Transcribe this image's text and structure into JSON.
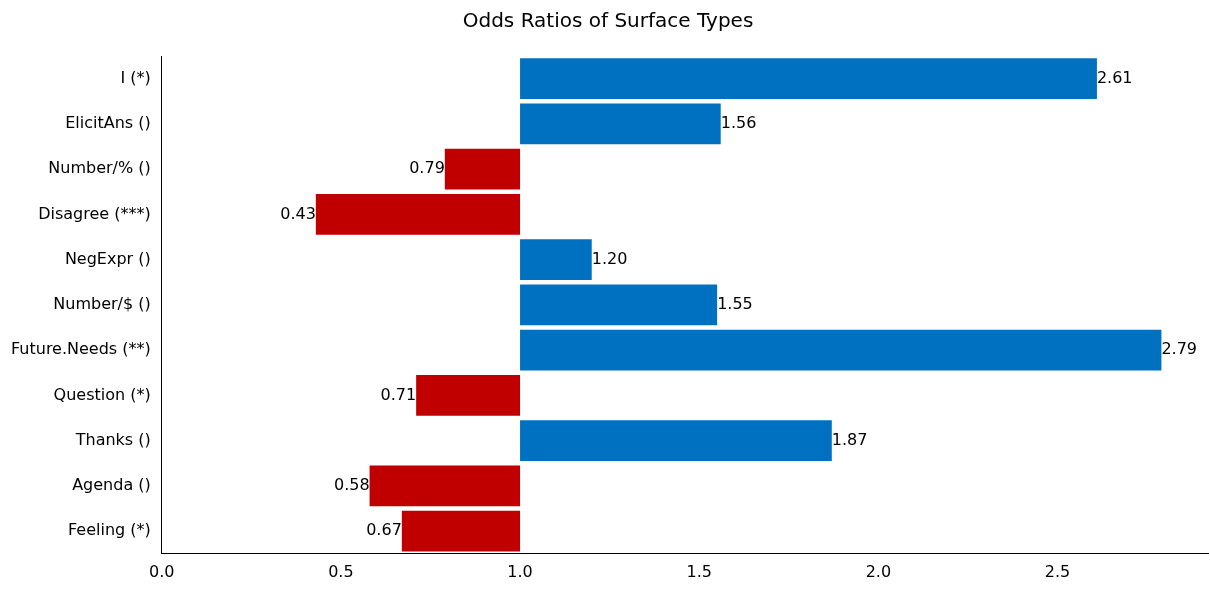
{
  "chart_data": {
    "type": "bar",
    "orientation": "horizontal",
    "title": "Odds Ratios of Surface Types",
    "categories": [
      "I (*)",
      "ElicitAns ()",
      "Number/% ()",
      "Disagree (***)",
      "NegExpr ()",
      "Number/$ ()",
      "Future.Needs (**)",
      "Question (*)",
      "Thanks ()",
      "Agenda ()",
      "Feeling (*)"
    ],
    "base": [
      1,
      1,
      1,
      1,
      1,
      1,
      1,
      1,
      1,
      1,
      1
    ],
    "values": [
      1.61,
      0.56,
      -0.21,
      -0.57,
      0.2,
      0.55,
      1.79,
      -0.29,
      0.87,
      -0.42,
      -0.33
    ],
    "value_labels": [
      "2.61",
      "1.56",
      "0.79",
      "0.43",
      "1.20",
      "1.55",
      "2.79",
      "0.71",
      "1.87",
      "0.58",
      "0.67"
    ],
    "colors": [
      "#0070c0",
      "#0070c0",
      "#c00000",
      "#c00000",
      "#0070c0",
      "#0070c0",
      "#0070c0",
      "#c00000",
      "#0070c0",
      "#c00000",
      "#c00000"
    ],
    "xlim": [
      0,
      2.92
    ],
    "xticks": [
      {
        "value": 0,
        "label": "0.0"
      },
      {
        "value": 0.5,
        "label": "0.5"
      },
      {
        "value": 1,
        "label": "1.0"
      },
      {
        "value": 1.5,
        "label": "1.5"
      },
      {
        "value": 2,
        "label": "2.0"
      },
      {
        "value": 2.5,
        "label": "2.5"
      }
    ],
    "grid": false,
    "legend": false
  }
}
